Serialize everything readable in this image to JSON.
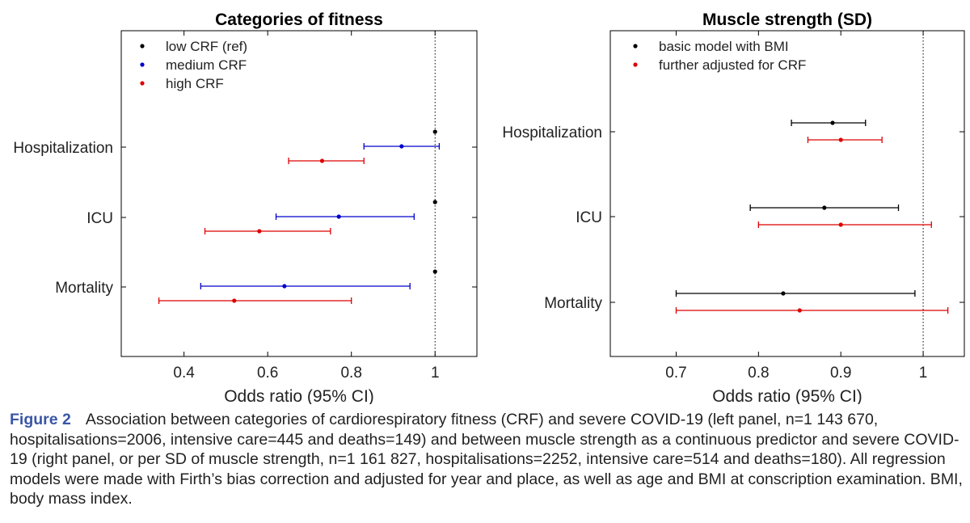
{
  "chart_data": [
    {
      "type": "forest",
      "title": "Categories of fitness",
      "xlabel": "Odds ratio (95% CI)",
      "ylabel": "",
      "xlim": [
        0.25,
        1.1
      ],
      "xticks": [
        0.4,
        0.6,
        0.8,
        1
      ],
      "xtick_labels": [
        "0.4",
        "0.6",
        "0.8",
        "1"
      ],
      "reference_line": 1,
      "legend_position": "top-left",
      "grid": false,
      "categories": [
        "Hospitalization",
        "ICU",
        "Mortality"
      ],
      "series": [
        {
          "name": "low CRF (ref)",
          "color": "#000000",
          "points": [
            {
              "category": "Hospitalization",
              "estimate": 1.0,
              "lower": null,
              "upper": null
            },
            {
              "category": "ICU",
              "estimate": 1.0,
              "lower": null,
              "upper": null
            },
            {
              "category": "Mortality",
              "estimate": 1.0,
              "lower": null,
              "upper": null
            }
          ]
        },
        {
          "name": "medium CRF",
          "color": "#0000cc",
          "points": [
            {
              "category": "Hospitalization",
              "estimate": 0.92,
              "lower": 0.83,
              "upper": 1.01
            },
            {
              "category": "ICU",
              "estimate": 0.77,
              "lower": 0.62,
              "upper": 0.95
            },
            {
              "category": "Mortality",
              "estimate": 0.64,
              "lower": 0.44,
              "upper": 0.94
            }
          ]
        },
        {
          "name": "high CRF",
          "color": "#dd0000",
          "points": [
            {
              "category": "Hospitalization",
              "estimate": 0.73,
              "lower": 0.65,
              "upper": 0.83
            },
            {
              "category": "ICU",
              "estimate": 0.58,
              "lower": 0.45,
              "upper": 0.75
            },
            {
              "category": "Mortality",
              "estimate": 0.52,
              "lower": 0.34,
              "upper": 0.8
            }
          ]
        }
      ]
    },
    {
      "type": "forest",
      "title": "Muscle strength (SD)",
      "xlabel": "Odds ratio (95% CI)",
      "ylabel": "",
      "xlim": [
        0.62,
        1.05
      ],
      "xticks": [
        0.7,
        0.8,
        0.9,
        1
      ],
      "xtick_labels": [
        "0.7",
        "0.8",
        "0.9",
        "1"
      ],
      "reference_line": 1,
      "legend_position": "top-left",
      "grid": false,
      "categories": [
        "Hospitalization",
        "ICU",
        "Mortality"
      ],
      "series": [
        {
          "name": "basic model with BMI",
          "color": "#000000",
          "points": [
            {
              "category": "Hospitalization",
              "estimate": 0.89,
              "lower": 0.84,
              "upper": 0.93
            },
            {
              "category": "ICU",
              "estimate": 0.88,
              "lower": 0.79,
              "upper": 0.97
            },
            {
              "category": "Mortality",
              "estimate": 0.83,
              "lower": 0.7,
              "upper": 0.99
            }
          ]
        },
        {
          "name": "further adjusted for CRF",
          "color": "#dd0000",
          "points": [
            {
              "category": "Hospitalization",
              "estimate": 0.9,
              "lower": 0.86,
              "upper": 0.95
            },
            {
              "category": "ICU",
              "estimate": 0.9,
              "lower": 0.8,
              "upper": 1.01
            },
            {
              "category": "Mortality",
              "estimate": 0.85,
              "lower": 0.7,
              "upper": 1.03
            }
          ]
        }
      ]
    }
  ],
  "caption": {
    "label": "Figure 2",
    "text": "Association between categories of cardiorespiratory fitness (CRF) and severe COVID-19 (left panel, n=1 143 670, hospitalisations=2006, intensive care=445 and deaths=149) and between muscle strength as a continuous predictor and severe COVID-19 (right panel, or per SD of muscle strength, n=1 161 827, hospitalisations=2252, intensive care=514 and deaths=180). All regression models were made with Firth’s bias correction and adjusted for year and place, as well as age and BMI at conscription examination. BMI, body mass index."
  }
}
